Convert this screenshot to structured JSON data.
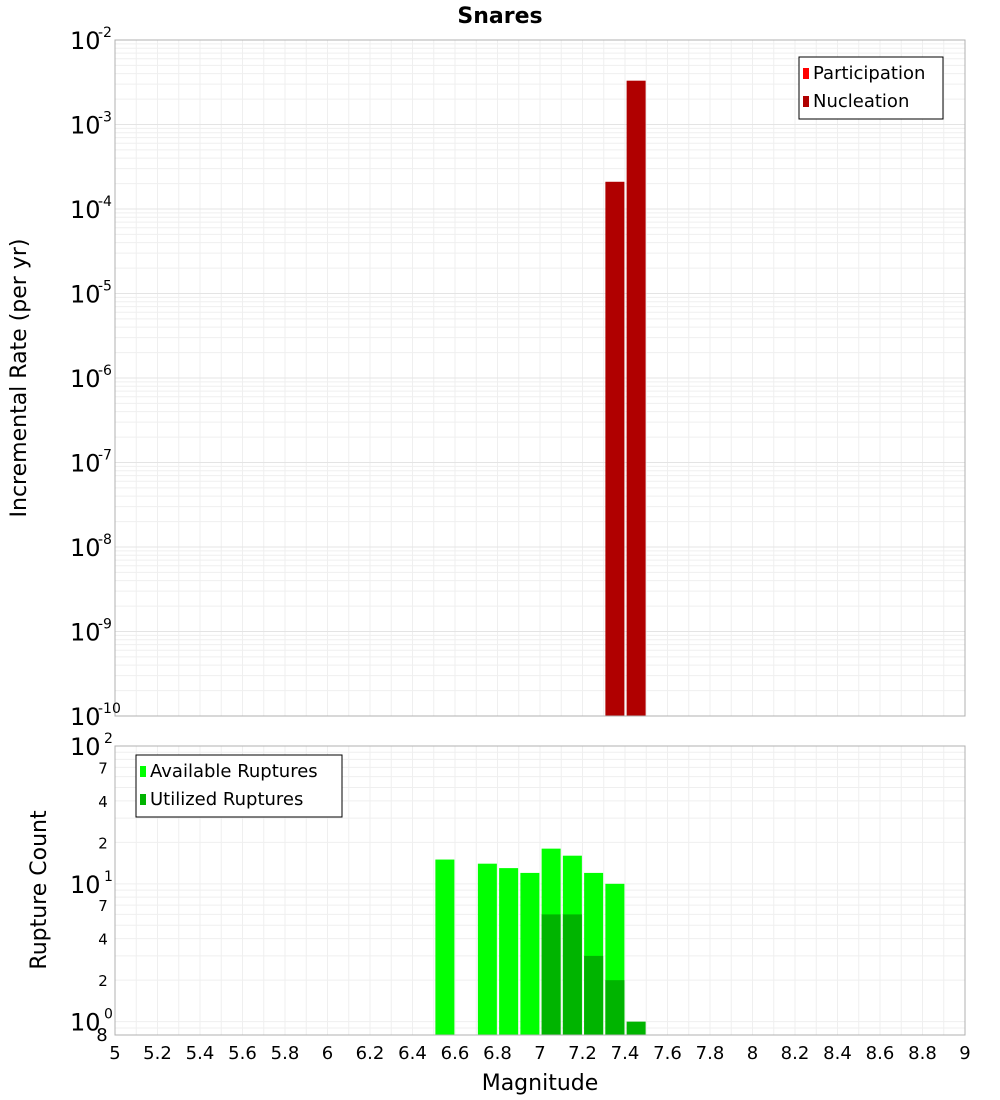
{
  "chart_data": [
    {
      "type": "bar",
      "title": "Snares",
      "xlabel": "",
      "ylabel": "Incremental Rate (per yr)",
      "xlim": [
        5,
        9
      ],
      "ylim": [
        1e-10,
        0.01
      ],
      "yscale": "log",
      "y_tick_labels": [
        {
          "base": "10",
          "exp": "-10"
        },
        {
          "base": "10",
          "exp": "-9"
        },
        {
          "base": "10",
          "exp": "-8"
        },
        {
          "base": "10",
          "exp": "-7"
        },
        {
          "base": "10",
          "exp": "-6"
        },
        {
          "base": "10",
          "exp": "-5"
        },
        {
          "base": "10",
          "exp": "-4"
        },
        {
          "base": "10",
          "exp": "-3"
        },
        {
          "base": "10",
          "exp": "-2"
        }
      ],
      "grid": true,
      "legend_position": "top-right",
      "series": [
        {
          "name": "Participation",
          "color": "#ff0000",
          "x": [],
          "values": []
        },
        {
          "name": "Nucleation",
          "color": "#b00000",
          "x": [
            7.35,
            7.45
          ],
          "values": [
            0.00021,
            0.0033
          ]
        }
      ]
    },
    {
      "type": "bar",
      "title": "",
      "xlabel": "Magnitude",
      "ylabel": "Rupture Count",
      "xlim": [
        5,
        9
      ],
      "ylim": [
        0.8,
        100
      ],
      "yscale": "log",
      "y_tick_labels": [
        {
          "base": "10",
          "exp": "0"
        },
        {
          "base": "10",
          "exp": "1"
        },
        {
          "base": "10",
          "exp": "2"
        }
      ],
      "y_minor_labels": [
        "8",
        "2",
        "4",
        "7",
        "2",
        "4",
        "7"
      ],
      "x_tick_labels": [
        "5",
        "5.2",
        "5.4",
        "5.6",
        "5.8",
        "6",
        "6.2",
        "6.4",
        "6.6",
        "6.8",
        "7",
        "7.2",
        "7.4",
        "7.6",
        "7.8",
        "8",
        "8.2",
        "8.4",
        "8.6",
        "8.8",
        "9"
      ],
      "grid": true,
      "legend_position": "top-left",
      "series": [
        {
          "name": "Available Ruptures",
          "color": "#00ff00",
          "x": [
            6.55,
            6.75,
            6.85,
            6.95,
            7.05,
            7.15,
            7.25,
            7.35
          ],
          "values": [
            15,
            14,
            13,
            12,
            18,
            16,
            12,
            10
          ]
        },
        {
          "name": "Utilized Ruptures",
          "color": "#00b400",
          "x": [
            7.05,
            7.15,
            7.25,
            7.35,
            7.45
          ],
          "values": [
            6,
            6,
            3,
            2,
            1
          ]
        }
      ]
    }
  ]
}
